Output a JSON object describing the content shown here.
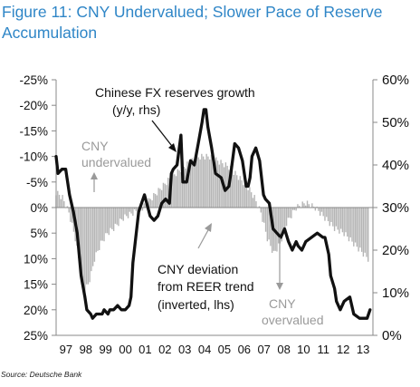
{
  "figure": {
    "title": "Figure 11: CNY Undervalued; Slower Pace of Reserve Accumulation",
    "source": "Source: Deutsche Bank"
  },
  "chart_data": {
    "type": "bar",
    "title": "Figure 11: CNY Undervalued; Slower Pace of Reserve Accumulation",
    "x_labels": [
      "97",
      "98",
      "99",
      "00",
      "01",
      "02",
      "03",
      "04",
      "05",
      "06",
      "07",
      "08",
      "10",
      "11",
      "12",
      "13"
    ],
    "left_axis": {
      "inverted": true,
      "range": [
        25,
        -25
      ],
      "ticks": [
        -25,
        -20,
        -15,
        -10,
        -5,
        0,
        5,
        10,
        15,
        20,
        25
      ],
      "tick_labels": [
        "-25%",
        "-20%",
        "-15%",
        "-10%",
        "-5%",
        "0%",
        "5%",
        "10%",
        "15%",
        "20%",
        "25%"
      ]
    },
    "right_axis": {
      "range": [
        0,
        60
      ],
      "ticks": [
        0,
        10,
        20,
        30,
        40,
        50,
        60
      ],
      "tick_labels": [
        "0%",
        "10%",
        "20%",
        "30%",
        "40%",
        "50%",
        "60%"
      ]
    },
    "series": [
      {
        "name": "CNY deviation from REER trend (inverted, lhs)",
        "type": "bar",
        "axis": "left",
        "color": "#b5b5b5",
        "x": [
          1997.0,
          1997.33,
          1997.67,
          1998.0,
          1998.17,
          1998.33,
          1998.5,
          1998.67,
          1998.83,
          1999.0,
          1999.33,
          1999.67,
          2000.0,
          2000.5,
          2001.0,
          2001.5,
          2002.0,
          2002.5,
          2003.0,
          2003.33,
          2003.67,
          2004.0,
          2004.5,
          2005.0,
          2005.5,
          2006.0,
          2006.5,
          2007.0,
          2007.33,
          2007.67,
          2008.0,
          2008.33,
          2008.67,
          2009.0,
          2009.5,
          2010.0,
          2010.5,
          2011.0,
          2011.5,
          2012.0,
          2012.5,
          2013.0,
          2013.25
        ],
        "values": [
          -3,
          -2,
          1,
          6,
          10,
          14,
          16,
          15,
          13,
          10,
          7,
          5,
          4,
          2,
          1,
          0,
          -2,
          -4,
          -6,
          -7,
          -8,
          -9,
          -10,
          -10,
          -9,
          -8,
          -6,
          -4,
          -2,
          1,
          6,
          9,
          7,
          3,
          0,
          -1,
          0,
          2,
          4,
          5,
          7,
          9,
          10
        ]
      },
      {
        "name": "Chinese FX reserves growth (y/y, rhs)",
        "type": "line",
        "axis": "right",
        "color": "#111111",
        "x": [
          1997.0,
          1997.1,
          1997.3,
          1997.5,
          1997.7,
          1997.9,
          1998.1,
          1998.3,
          1998.5,
          1998.6,
          1998.8,
          1998.9,
          1999.1,
          1999.4,
          1999.5,
          1999.7,
          1999.8,
          2000.0,
          2000.2,
          2000.4,
          2000.6,
          2000.8,
          2000.9,
          2001.0,
          2001.3,
          2001.6,
          2001.9,
          2002.1,
          2002.3,
          2002.5,
          2002.7,
          2002.9,
          2003.0,
          2003.1,
          2003.3,
          2003.5,
          2003.6,
          2003.8,
          2004.0,
          2004.2,
          2004.4,
          2004.6,
          2004.7,
          2004.8,
          2004.9,
          2005.1,
          2005.3,
          2005.6,
          2005.8,
          2006.0,
          2006.1,
          2006.3,
          2006.5,
          2006.7,
          2006.8,
          2006.9,
          2007.0,
          2007.1,
          2007.2,
          2007.4,
          2007.6,
          2007.8,
          2007.9,
          2008.1,
          2008.3,
          2008.5,
          2008.7,
          2008.9,
          2009.1,
          2009.3,
          2009.5,
          2009.6,
          2009.8,
          2010.0,
          2010.3,
          2010.6,
          2010.9,
          2011.0,
          2011.2,
          2011.3,
          2011.5,
          2011.6,
          2011.8,
          2012.0,
          2012.3,
          2012.5,
          2012.8,
          2013.0,
          2013.2,
          2013.35
        ],
        "values": [
          42,
          38,
          39,
          39,
          33,
          29,
          24,
          14,
          9,
          6,
          5,
          4,
          5,
          5,
          6,
          5,
          6,
          6,
          7,
          6,
          6,
          7,
          9,
          17,
          29,
          33,
          28,
          27,
          28,
          31,
          32,
          31,
          38,
          39,
          40,
          47,
          36,
          36,
          41,
          40,
          45,
          50,
          53,
          53,
          49,
          44,
          38,
          37,
          34,
          35,
          38,
          45,
          44,
          41,
          38,
          35,
          35,
          37,
          42,
          44,
          41,
          33,
          32,
          31,
          25,
          24,
          23,
          25,
          22,
          20,
          22,
          21,
          20,
          22,
          23,
          24,
          23,
          23,
          19,
          14,
          11,
          8,
          6,
          8,
          9,
          5,
          4,
          4,
          4,
          6
        ]
      }
    ],
    "annotations": [
      {
        "text_lines": [
          "Chinese FX reserves growth",
          "(y/y, rhs)"
        ],
        "color": "#111111"
      },
      {
        "text_lines": [
          "CNY",
          "undervalued"
        ],
        "color": "#9a9a9a"
      },
      {
        "text_lines": [
          "CNY deviation",
          "from REER trend",
          "(inverted, lhs)"
        ],
        "color": "#111111"
      },
      {
        "text_lines": [
          "CNY",
          "overvalued"
        ],
        "color": "#9a9a9a"
      }
    ]
  }
}
